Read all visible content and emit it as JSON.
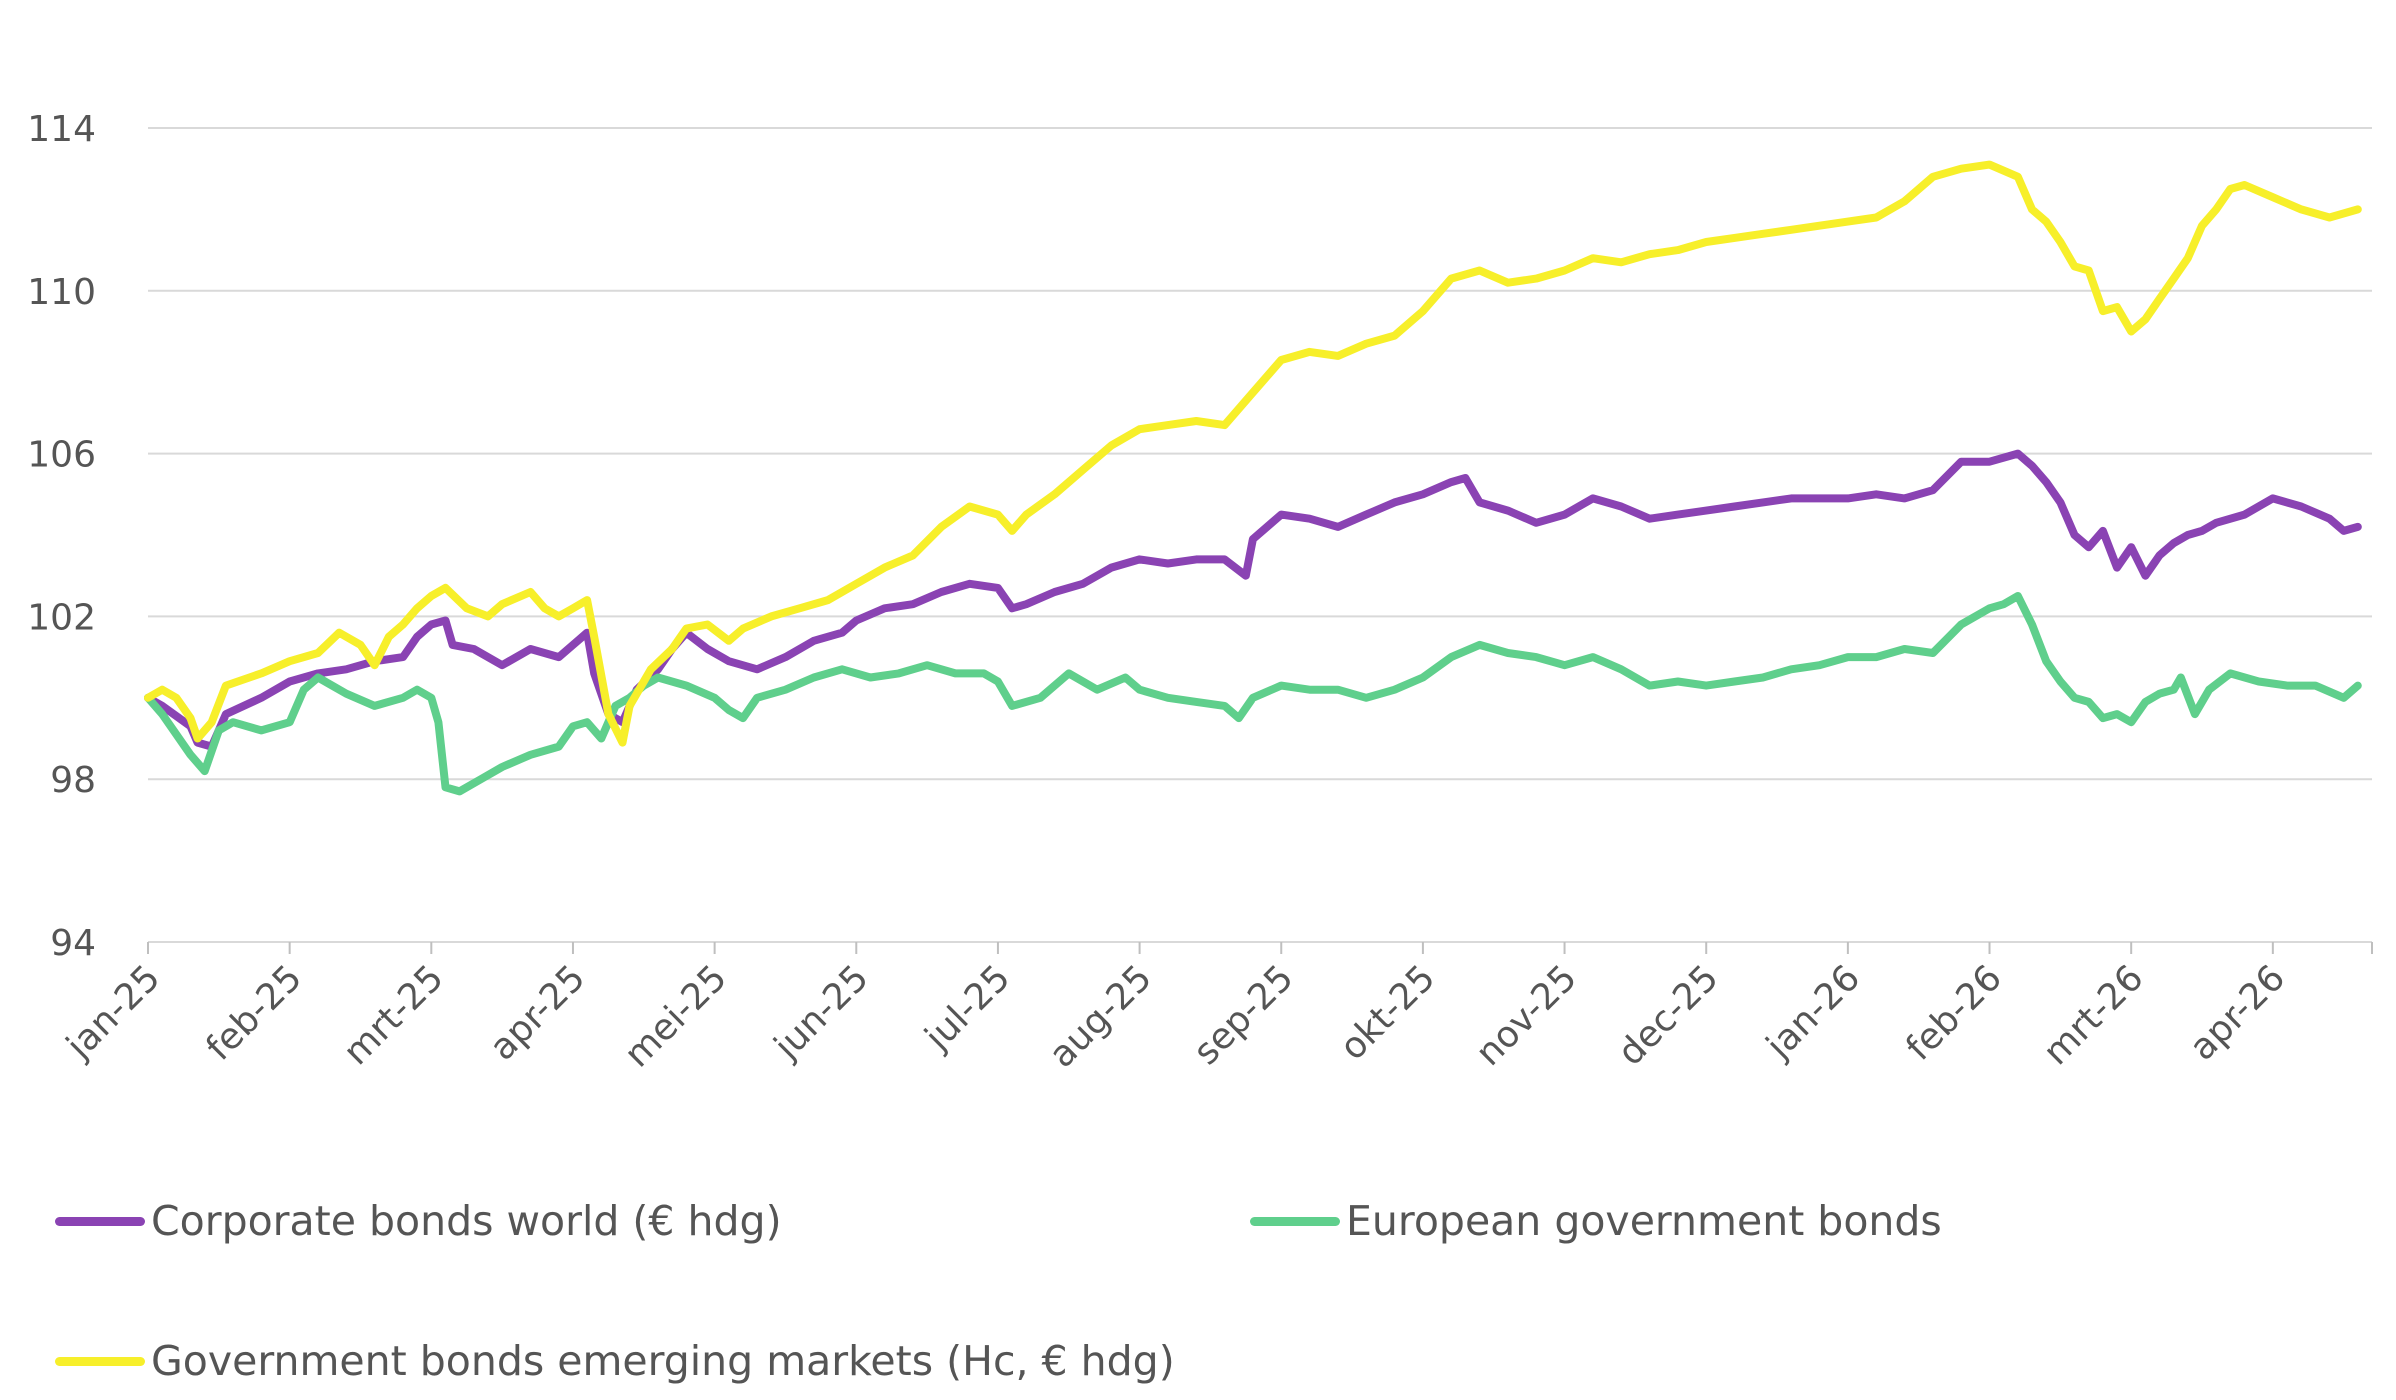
{
  "chart_data": {
    "type": "line",
    "title": "",
    "xlabel": "",
    "ylabel": "",
    "ylim": [
      94,
      114
    ],
    "y_ticks": [
      94,
      98,
      102,
      106,
      110,
      114
    ],
    "x_range": [
      0,
      15.7
    ],
    "x_ticks": [
      "jan-25",
      "feb-25",
      "mrt-25",
      "apr-25",
      "mei-25",
      "jun-25",
      "jul-25",
      "aug-25",
      "sep-25",
      "okt-25",
      "nov-25",
      "dec-25",
      "jan-26",
      "feb-26",
      "mrt-26",
      "apr-26"
    ],
    "grid": "horizontal",
    "legend_position": "bottom",
    "series": [
      {
        "name": "Corporate bonds world (€ hdg)",
        "color": "#8a43b3",
        "points": [
          [
            0,
            100
          ],
          [
            0.1,
            99.8
          ],
          [
            0.3,
            99.3
          ],
          [
            0.35,
            98.9
          ],
          [
            0.45,
            98.8
          ],
          [
            0.55,
            99.6
          ],
          [
            0.8,
            100.0
          ],
          [
            1.0,
            100.4
          ],
          [
            1.2,
            100.6
          ],
          [
            1.4,
            100.7
          ],
          [
            1.6,
            100.9
          ],
          [
            1.8,
            101.0
          ],
          [
            1.9,
            101.5
          ],
          [
            2.0,
            101.8
          ],
          [
            2.1,
            101.9
          ],
          [
            2.15,
            101.3
          ],
          [
            2.3,
            101.2
          ],
          [
            2.5,
            100.8
          ],
          [
            2.7,
            101.2
          ],
          [
            2.9,
            101.0
          ],
          [
            3.0,
            101.3
          ],
          [
            3.1,
            101.6
          ],
          [
            3.15,
            100.6
          ],
          [
            3.25,
            99.6
          ],
          [
            3.35,
            99.4
          ],
          [
            3.45,
            100.2
          ],
          [
            3.6,
            100.7
          ],
          [
            3.7,
            101.2
          ],
          [
            3.8,
            101.6
          ],
          [
            3.95,
            101.2
          ],
          [
            4.1,
            100.9
          ],
          [
            4.3,
            100.7
          ],
          [
            4.5,
            101.0
          ],
          [
            4.7,
            101.4
          ],
          [
            4.9,
            101.6
          ],
          [
            5.0,
            101.9
          ],
          [
            5.2,
            102.2
          ],
          [
            5.4,
            102.3
          ],
          [
            5.6,
            102.6
          ],
          [
            5.8,
            102.8
          ],
          [
            6.0,
            102.7
          ],
          [
            6.1,
            102.2
          ],
          [
            6.2,
            102.3
          ],
          [
            6.4,
            102.6
          ],
          [
            6.6,
            102.8
          ],
          [
            6.8,
            103.2
          ],
          [
            7.0,
            103.4
          ],
          [
            7.2,
            103.3
          ],
          [
            7.4,
            103.4
          ],
          [
            7.6,
            103.4
          ],
          [
            7.75,
            103.0
          ],
          [
            7.8,
            103.9
          ],
          [
            8.0,
            104.5
          ],
          [
            8.2,
            104.4
          ],
          [
            8.4,
            104.2
          ],
          [
            8.6,
            104.5
          ],
          [
            8.8,
            104.8
          ],
          [
            9.0,
            105.0
          ],
          [
            9.2,
            105.3
          ],
          [
            9.3,
            105.4
          ],
          [
            9.4,
            104.8
          ],
          [
            9.6,
            104.6
          ],
          [
            9.8,
            104.3
          ],
          [
            10.0,
            104.5
          ],
          [
            10.2,
            104.9
          ],
          [
            10.4,
            104.7
          ],
          [
            10.6,
            104.4
          ],
          [
            10.8,
            104.5
          ],
          [
            11.0,
            104.6
          ],
          [
            11.2,
            104.7
          ],
          [
            11.4,
            104.8
          ],
          [
            11.6,
            104.9
          ],
          [
            11.8,
            104.9
          ],
          [
            12.0,
            104.9
          ],
          [
            12.2,
            105.0
          ],
          [
            12.4,
            104.9
          ],
          [
            12.6,
            105.1
          ],
          [
            12.8,
            105.8
          ],
          [
            13.0,
            105.8
          ],
          [
            13.2,
            106.0
          ],
          [
            13.3,
            105.7
          ],
          [
            13.4,
            105.3
          ],
          [
            13.5,
            104.8
          ],
          [
            13.6,
            104.0
          ],
          [
            13.7,
            103.7
          ],
          [
            13.8,
            104.1
          ],
          [
            13.9,
            103.2
          ],
          [
            14.0,
            103.7
          ],
          [
            14.1,
            103.0
          ],
          [
            14.2,
            103.5
          ],
          [
            14.3,
            103.8
          ],
          [
            14.4,
            104.0
          ],
          [
            14.5,
            104.1
          ],
          [
            14.6,
            104.3
          ],
          [
            14.8,
            104.5
          ],
          [
            15.0,
            104.9
          ],
          [
            15.2,
            104.7
          ],
          [
            15.4,
            104.4
          ],
          [
            15.5,
            104.1
          ],
          [
            15.6,
            104.2
          ]
        ]
      },
      {
        "name": "European government bonds",
        "color": "#5fcf8c",
        "points": [
          [
            0,
            100
          ],
          [
            0.1,
            99.6
          ],
          [
            0.2,
            99.1
          ],
          [
            0.3,
            98.6
          ],
          [
            0.4,
            98.2
          ],
          [
            0.5,
            99.2
          ],
          [
            0.6,
            99.4
          ],
          [
            0.8,
            99.2
          ],
          [
            1.0,
            99.4
          ],
          [
            1.1,
            100.2
          ],
          [
            1.2,
            100.5
          ],
          [
            1.3,
            100.3
          ],
          [
            1.4,
            100.1
          ],
          [
            1.6,
            99.8
          ],
          [
            1.8,
            100.0
          ],
          [
            1.9,
            100.2
          ],
          [
            2.0,
            100.0
          ],
          [
            2.05,
            99.4
          ],
          [
            2.1,
            97.8
          ],
          [
            2.2,
            97.7
          ],
          [
            2.35,
            98.0
          ],
          [
            2.5,
            98.3
          ],
          [
            2.7,
            98.6
          ],
          [
            2.9,
            98.8
          ],
          [
            3.0,
            99.3
          ],
          [
            3.1,
            99.4
          ],
          [
            3.2,
            99.0
          ],
          [
            3.3,
            99.8
          ],
          [
            3.4,
            100.0
          ],
          [
            3.5,
            100.3
          ],
          [
            3.6,
            100.5
          ],
          [
            3.8,
            100.3
          ],
          [
            4.0,
            100.0
          ],
          [
            4.1,
            99.7
          ],
          [
            4.2,
            99.5
          ],
          [
            4.3,
            100.0
          ],
          [
            4.5,
            100.2
          ],
          [
            4.7,
            100.5
          ],
          [
            4.9,
            100.7
          ],
          [
            5.1,
            100.5
          ],
          [
            5.3,
            100.6
          ],
          [
            5.5,
            100.8
          ],
          [
            5.7,
            100.6
          ],
          [
            5.9,
            100.6
          ],
          [
            6.0,
            100.4
          ],
          [
            6.1,
            99.8
          ],
          [
            6.3,
            100.0
          ],
          [
            6.5,
            100.6
          ],
          [
            6.7,
            100.2
          ],
          [
            6.9,
            100.5
          ],
          [
            7.0,
            100.2
          ],
          [
            7.2,
            100.0
          ],
          [
            7.4,
            99.9
          ],
          [
            7.6,
            99.8
          ],
          [
            7.7,
            99.5
          ],
          [
            7.8,
            100.0
          ],
          [
            8.0,
            100.3
          ],
          [
            8.2,
            100.2
          ],
          [
            8.4,
            100.2
          ],
          [
            8.6,
            100.0
          ],
          [
            8.8,
            100.2
          ],
          [
            9.0,
            100.5
          ],
          [
            9.2,
            101.0
          ],
          [
            9.4,
            101.3
          ],
          [
            9.6,
            101.1
          ],
          [
            9.8,
            101.0
          ],
          [
            10.0,
            100.8
          ],
          [
            10.2,
            101.0
          ],
          [
            10.4,
            100.7
          ],
          [
            10.6,
            100.3
          ],
          [
            10.8,
            100.4
          ],
          [
            11.0,
            100.3
          ],
          [
            11.2,
            100.4
          ],
          [
            11.4,
            100.5
          ],
          [
            11.6,
            100.7
          ],
          [
            11.8,
            100.8
          ],
          [
            12.0,
            101.0
          ],
          [
            12.2,
            101.0
          ],
          [
            12.4,
            101.2
          ],
          [
            12.6,
            101.1
          ],
          [
            12.8,
            101.8
          ],
          [
            13.0,
            102.2
          ],
          [
            13.1,
            102.3
          ],
          [
            13.2,
            102.5
          ],
          [
            13.3,
            101.8
          ],
          [
            13.4,
            100.9
          ],
          [
            13.5,
            100.4
          ],
          [
            13.6,
            100.0
          ],
          [
            13.7,
            99.9
          ],
          [
            13.8,
            99.5
          ],
          [
            13.9,
            99.6
          ],
          [
            14.0,
            99.4
          ],
          [
            14.1,
            99.9
          ],
          [
            14.2,
            100.1
          ],
          [
            14.3,
            100.2
          ],
          [
            14.35,
            100.5
          ],
          [
            14.45,
            99.6
          ],
          [
            14.55,
            100.2
          ],
          [
            14.7,
            100.6
          ],
          [
            14.9,
            100.4
          ],
          [
            15.1,
            100.3
          ],
          [
            15.3,
            100.3
          ],
          [
            15.5,
            100.0
          ],
          [
            15.6,
            100.3
          ]
        ]
      },
      {
        "name": "Government bonds emerging markets (Hc, € hdg)",
        "color": "#f7ef2a",
        "points": [
          [
            0,
            100
          ],
          [
            0.1,
            100.2
          ],
          [
            0.2,
            100.0
          ],
          [
            0.3,
            99.5
          ],
          [
            0.35,
            99.0
          ],
          [
            0.45,
            99.4
          ],
          [
            0.55,
            100.3
          ],
          [
            0.8,
            100.6
          ],
          [
            1.0,
            100.9
          ],
          [
            1.2,
            101.1
          ],
          [
            1.35,
            101.6
          ],
          [
            1.5,
            101.3
          ],
          [
            1.6,
            100.8
          ],
          [
            1.7,
            101.5
          ],
          [
            1.8,
            101.8
          ],
          [
            1.9,
            102.2
          ],
          [
            2.0,
            102.5
          ],
          [
            2.1,
            102.7
          ],
          [
            2.25,
            102.2
          ],
          [
            2.4,
            102.0
          ],
          [
            2.5,
            102.3
          ],
          [
            2.7,
            102.6
          ],
          [
            2.8,
            102.2
          ],
          [
            2.9,
            102.0
          ],
          [
            3.0,
            102.2
          ],
          [
            3.1,
            102.4
          ],
          [
            3.15,
            101.5
          ],
          [
            3.25,
            99.6
          ],
          [
            3.35,
            98.9
          ],
          [
            3.4,
            99.8
          ],
          [
            3.55,
            100.7
          ],
          [
            3.7,
            101.2
          ],
          [
            3.8,
            101.7
          ],
          [
            3.95,
            101.8
          ],
          [
            4.1,
            101.4
          ],
          [
            4.2,
            101.7
          ],
          [
            4.4,
            102.0
          ],
          [
            4.6,
            102.2
          ],
          [
            4.8,
            102.4
          ],
          [
            5.0,
            102.8
          ],
          [
            5.2,
            103.2
          ],
          [
            5.4,
            103.5
          ],
          [
            5.6,
            104.2
          ],
          [
            5.8,
            104.7
          ],
          [
            6.0,
            104.5
          ],
          [
            6.1,
            104.1
          ],
          [
            6.2,
            104.5
          ],
          [
            6.4,
            105.0
          ],
          [
            6.6,
            105.6
          ],
          [
            6.8,
            106.2
          ],
          [
            7.0,
            106.6
          ],
          [
            7.2,
            106.7
          ],
          [
            7.4,
            106.8
          ],
          [
            7.6,
            106.7
          ],
          [
            7.8,
            107.5
          ],
          [
            8.0,
            108.3
          ],
          [
            8.2,
            108.5
          ],
          [
            8.4,
            108.4
          ],
          [
            8.6,
            108.7
          ],
          [
            8.8,
            108.9
          ],
          [
            9.0,
            109.5
          ],
          [
            9.2,
            110.3
          ],
          [
            9.4,
            110.5
          ],
          [
            9.6,
            110.2
          ],
          [
            9.8,
            110.3
          ],
          [
            10.0,
            110.5
          ],
          [
            10.2,
            110.8
          ],
          [
            10.4,
            110.7
          ],
          [
            10.6,
            110.9
          ],
          [
            10.8,
            111.0
          ],
          [
            11.0,
            111.2
          ],
          [
            11.2,
            111.3
          ],
          [
            11.4,
            111.4
          ],
          [
            11.6,
            111.5
          ],
          [
            11.8,
            111.6
          ],
          [
            12.0,
            111.7
          ],
          [
            12.2,
            111.8
          ],
          [
            12.4,
            112.2
          ],
          [
            12.6,
            112.8
          ],
          [
            12.8,
            113.0
          ],
          [
            13.0,
            113.1
          ],
          [
            13.2,
            112.8
          ],
          [
            13.3,
            112.0
          ],
          [
            13.4,
            111.7
          ],
          [
            13.5,
            111.2
          ],
          [
            13.6,
            110.6
          ],
          [
            13.7,
            110.5
          ],
          [
            13.8,
            109.5
          ],
          [
            13.9,
            109.6
          ],
          [
            14.0,
            109.0
          ],
          [
            14.1,
            109.3
          ],
          [
            14.2,
            109.8
          ],
          [
            14.3,
            110.3
          ],
          [
            14.4,
            110.8
          ],
          [
            14.5,
            111.6
          ],
          [
            14.6,
            112.0
          ],
          [
            14.7,
            112.5
          ],
          [
            14.8,
            112.6
          ],
          [
            15.0,
            112.3
          ],
          [
            15.2,
            112.0
          ],
          [
            15.4,
            111.8
          ],
          [
            15.6,
            112.0
          ]
        ]
      }
    ]
  }
}
